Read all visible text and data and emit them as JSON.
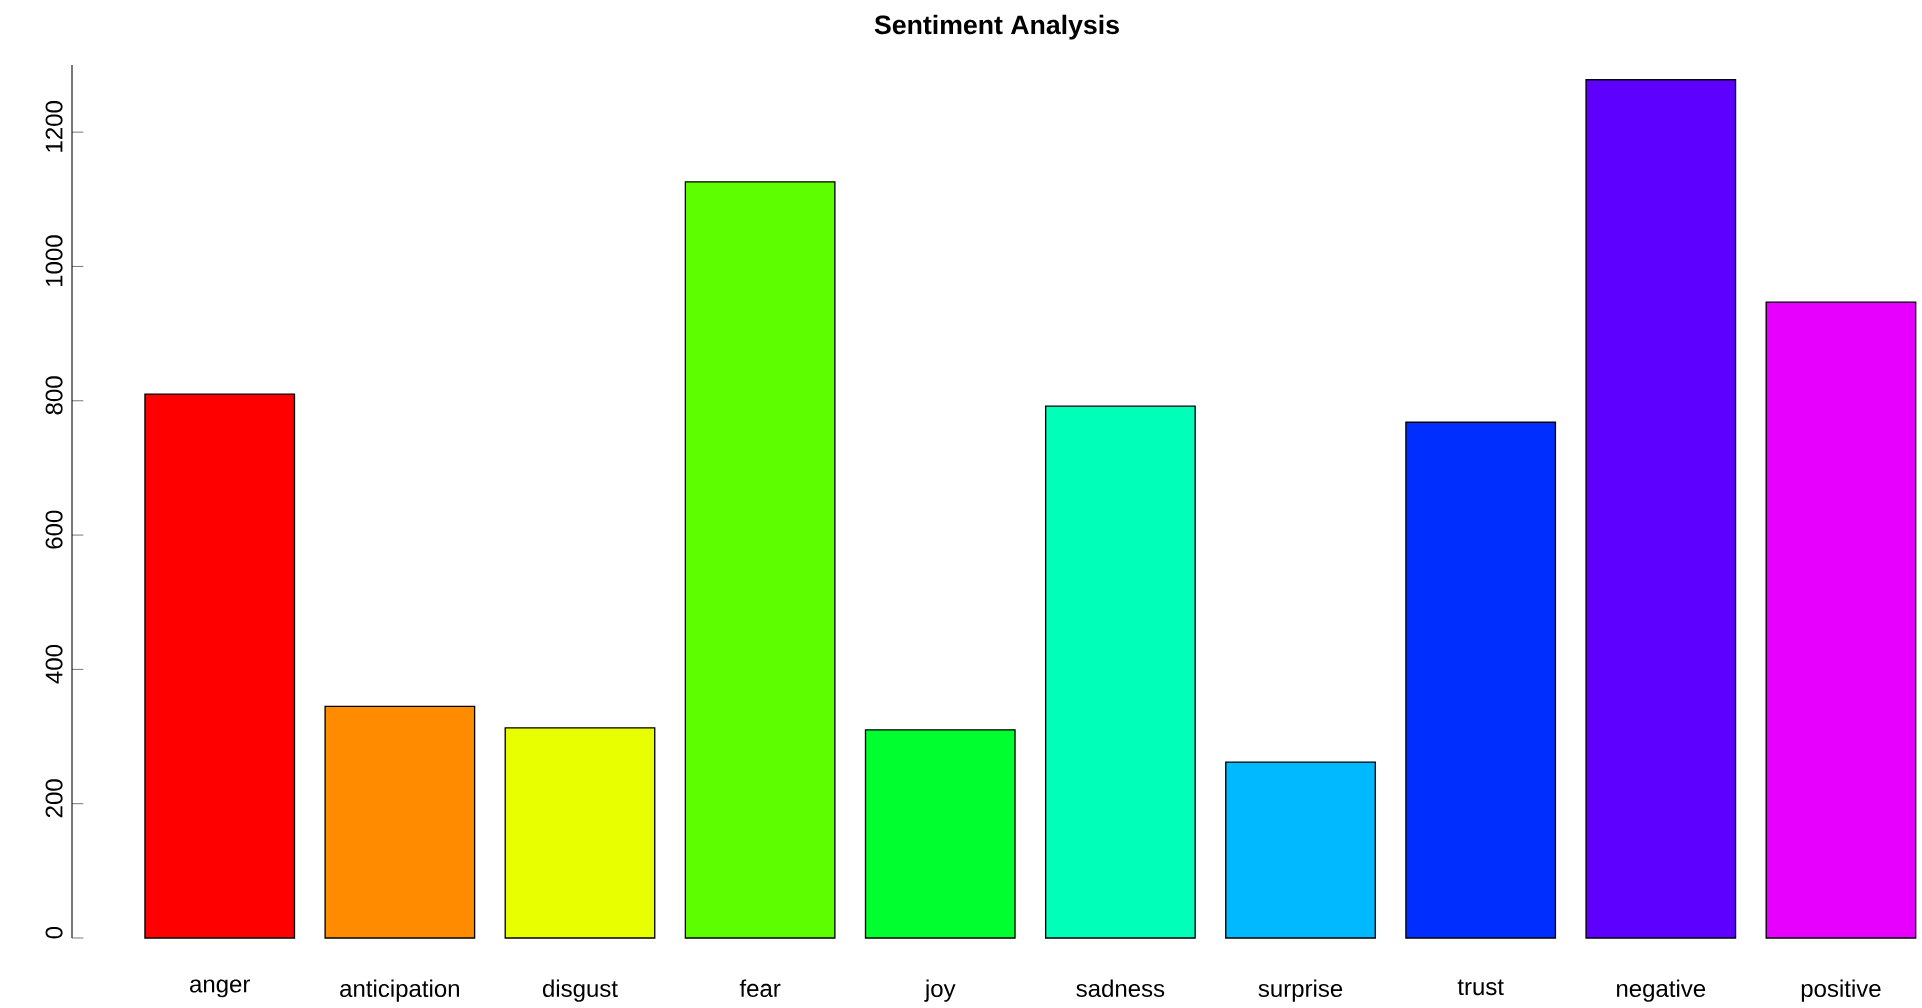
{
  "chart_data": {
    "type": "bar",
    "title": "Sentiment Analysis",
    "categories": [
      "anger",
      "anticipation",
      "disgust",
      "fear",
      "joy",
      "sadness",
      "surprise",
      "trust",
      "negative",
      "positive"
    ],
    "values": [
      810,
      345,
      313,
      1126,
      310,
      792,
      262,
      768,
      1278,
      947
    ],
    "colors": [
      "#ff0000",
      "#ff8b00",
      "#e8ff00",
      "#5dff00",
      "#00ff2e",
      "#00ffb9",
      "#00b9ff",
      "#002eff",
      "#5d00ff",
      "#e800ff"
    ],
    "ylim": [
      0,
      1300
    ],
    "yticks": [
      0,
      200,
      400,
      600,
      800,
      1000,
      1200
    ]
  }
}
